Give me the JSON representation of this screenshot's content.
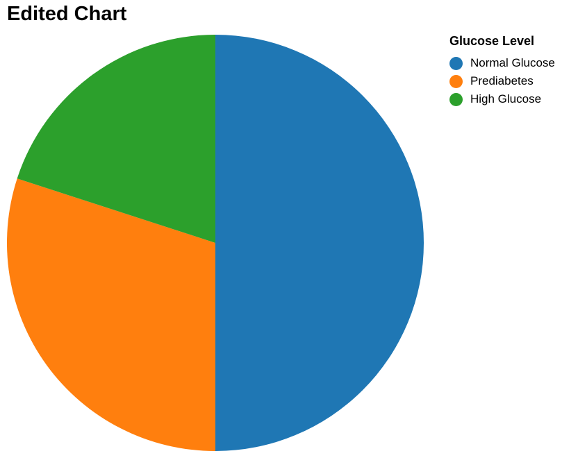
{
  "chart_data": {
    "type": "pie",
    "title": "Edited Chart",
    "legend_title": "Glucose Level",
    "legend_position": "top-right",
    "categories": [
      "Normal Glucose",
      "Prediabetes",
      "High Glucose"
    ],
    "values": [
      50,
      30,
      20
    ],
    "colors": [
      "#1f77b4",
      "#ff7f0e",
      "#2ca02c"
    ]
  }
}
